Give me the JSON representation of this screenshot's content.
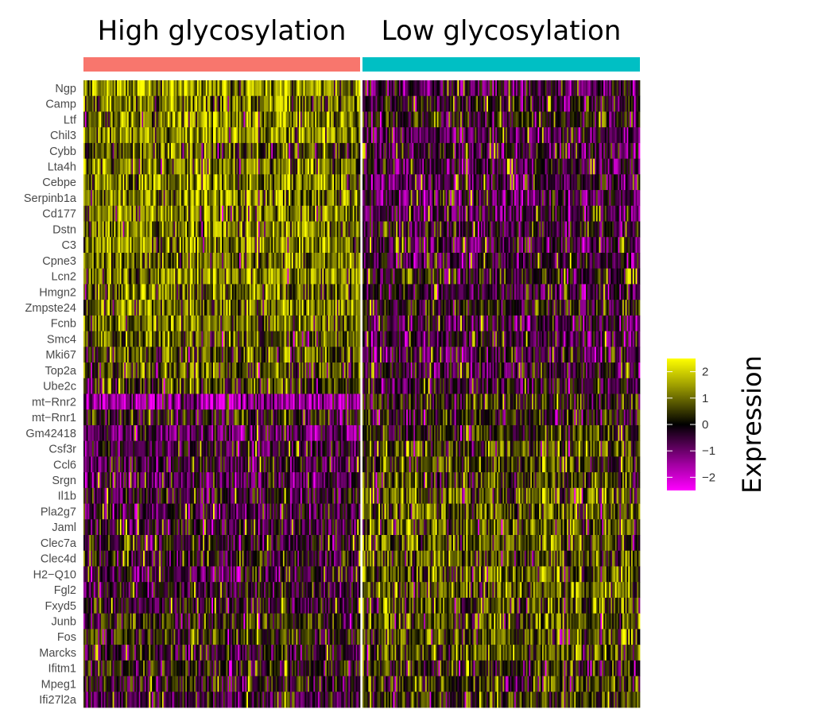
{
  "chart_data": {
    "type": "heatmap",
    "groups": [
      {
        "name": "High glycosylation",
        "color": "#f8766d"
      },
      {
        "name": "Low glycosylation",
        "color": "#00bfc4"
      }
    ],
    "genes": [
      "Ngp",
      "Camp",
      "Ltf",
      "Chil3",
      "Cybb",
      "Lta4h",
      "Cebpe",
      "Serpinb1a",
      "Cd177",
      "Dstn",
      "C3",
      "Cpne3",
      "Lcn2",
      "Hmgn2",
      "Zmpste24",
      "Fcnb",
      "Smc4",
      "Mki67",
      "Top2a",
      "Ube2c",
      "mt−Rnr2",
      "mt−Rnr1",
      "Gm42418",
      "Csf3r",
      "Ccl6",
      "Srgn",
      "Il1b",
      "Pla2g7",
      "Jaml",
      "Clec7a",
      "Clec4d",
      "H2−Q10",
      "Fgl2",
      "Fxyd5",
      "Junb",
      "Fos",
      "Marcks",
      "Ifitm1",
      "Mpeg1",
      "Ifi27l2a"
    ],
    "mean_expression": {
      "High glycosylation": [
        1.5,
        1.3,
        1.3,
        1.5,
        0.8,
        1.2,
        1.2,
        1.3,
        1.3,
        1.2,
        1.2,
        1.1,
        1.3,
        1.1,
        1.3,
        1.2,
        0.8,
        0.7,
        0.7,
        0.6,
        -1.6,
        0.1,
        -0.9,
        -0.5,
        -0.5,
        -0.7,
        -0.3,
        -0.5,
        -0.4,
        -0.2,
        -0.3,
        -0.4,
        -0.3,
        -0.2,
        0.3,
        0.3,
        -0.3,
        0.1,
        -0.2,
        -0.4
      ],
      "Low glycosylation": [
        -0.7,
        -0.3,
        0.0,
        -0.8,
        -0.6,
        -0.6,
        -0.7,
        -0.8,
        -0.6,
        -0.5,
        -0.6,
        -0.6,
        -0.2,
        -0.5,
        0.1,
        -0.6,
        -0.6,
        -0.6,
        -0.5,
        -0.4,
        0.2,
        0.1,
        0.2,
        0.6,
        0.6,
        0.5,
        0.8,
        0.8,
        0.8,
        0.8,
        0.8,
        0.8,
        0.8,
        0.7,
        0.8,
        0.8,
        0.7,
        0.2,
        0.5,
        0.5
      ]
    },
    "color_scale": {
      "title": "Expression",
      "range": [
        -2.5,
        2.5
      ],
      "colors": [
        "#ff00ff",
        "#000000",
        "#ffff00"
      ],
      "ticks": [
        2,
        1,
        0,
        -1,
        -2
      ],
      "tick_labels": [
        "2",
        "1",
        "0",
        "−1",
        "−2"
      ]
    },
    "legend_position": "right"
  }
}
